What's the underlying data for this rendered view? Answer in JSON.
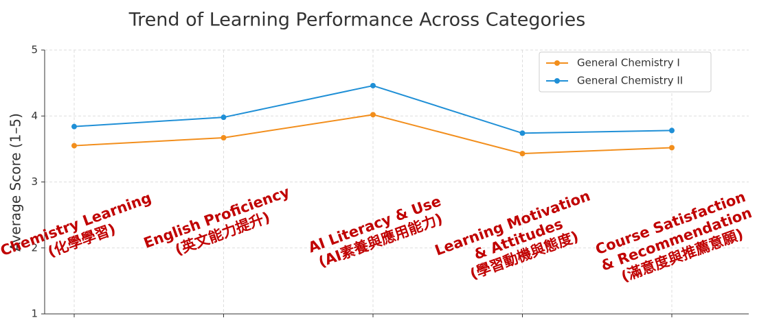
{
  "chart_data": {
    "type": "line",
    "title": "Trend of Learning Performance Across Categories",
    "ylabel": "Average Score (1–5)",
    "categories": [
      [
        "Chemistry Learning",
        "(化學學習)"
      ],
      [
        "English Proficiency",
        "(英文能力提升)"
      ],
      [
        "AI Literacy & Use",
        "(AI素養與應用能力)"
      ],
      [
        "Learning Motivation",
        "& Attitudes",
        "(學習動機與態度)"
      ],
      [
        "Course Satisfaction",
        "& Recommendation",
        "(滿意度與推薦意願)"
      ]
    ],
    "series": [
      {
        "name": "General Chemistry I",
        "color": "#f28e1c",
        "values": [
          3.55,
          3.67,
          4.02,
          3.43,
          3.52
        ]
      },
      {
        "name": "General Chemistry II",
        "color": "#1f8fd6",
        "values": [
          3.84,
          3.98,
          4.46,
          3.74,
          3.78
        ]
      }
    ],
    "ylim": [
      1,
      5
    ],
    "yticks": [
      1,
      2,
      3,
      4,
      5
    ],
    "grid": true,
    "legend": "upper right"
  }
}
